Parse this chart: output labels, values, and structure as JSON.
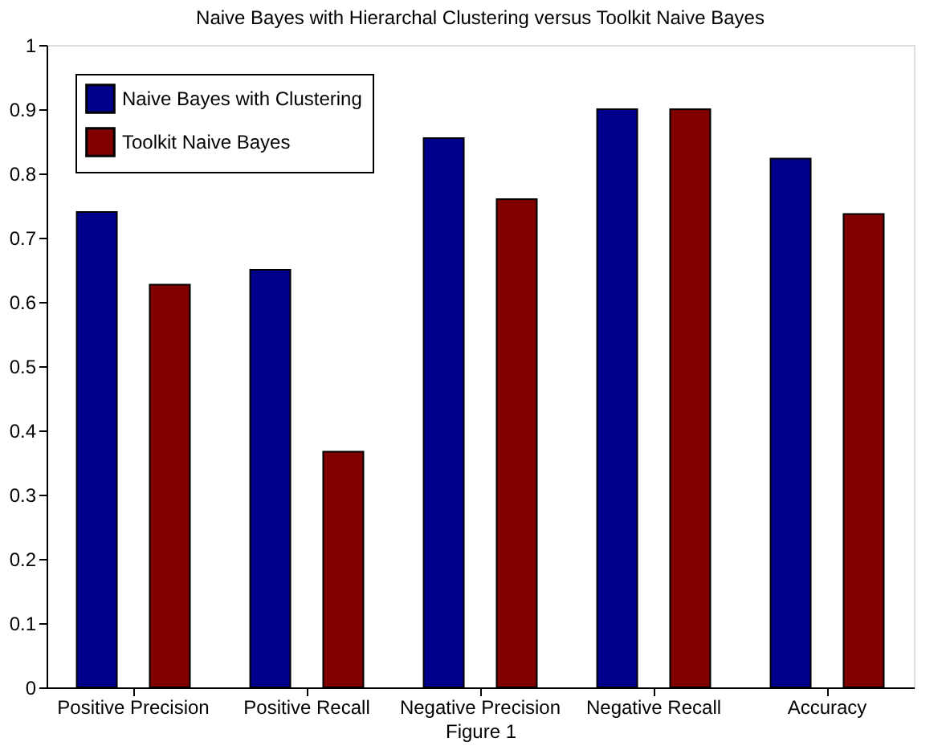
{
  "chart_data": {
    "type": "bar",
    "title": "Naive Bayes with Hierarchal Clustering versus Toolkit Naive Bayes",
    "xlabel": "Figure 1",
    "categories": [
      "Positive Precision",
      "Positive Recall",
      "Negative Precision",
      "Negative Recall",
      "Accuracy"
    ],
    "series": [
      {
        "name": "Naive Bayes with Clustering",
        "color": "#00008b",
        "values": [
          0.74,
          0.65,
          0.855,
          0.9,
          0.823
        ]
      },
      {
        "name": "Toolkit Naive Bayes",
        "color": "#800000",
        "values": [
          0.627,
          0.367,
          0.76,
          0.9,
          0.737
        ]
      }
    ],
    "ylim": [
      0,
      1
    ],
    "yticks": [
      0,
      0.1,
      0.2,
      0.3,
      0.4,
      0.5,
      0.6,
      0.7,
      0.8,
      0.9,
      1
    ],
    "grid": false,
    "legend": "top left"
  }
}
